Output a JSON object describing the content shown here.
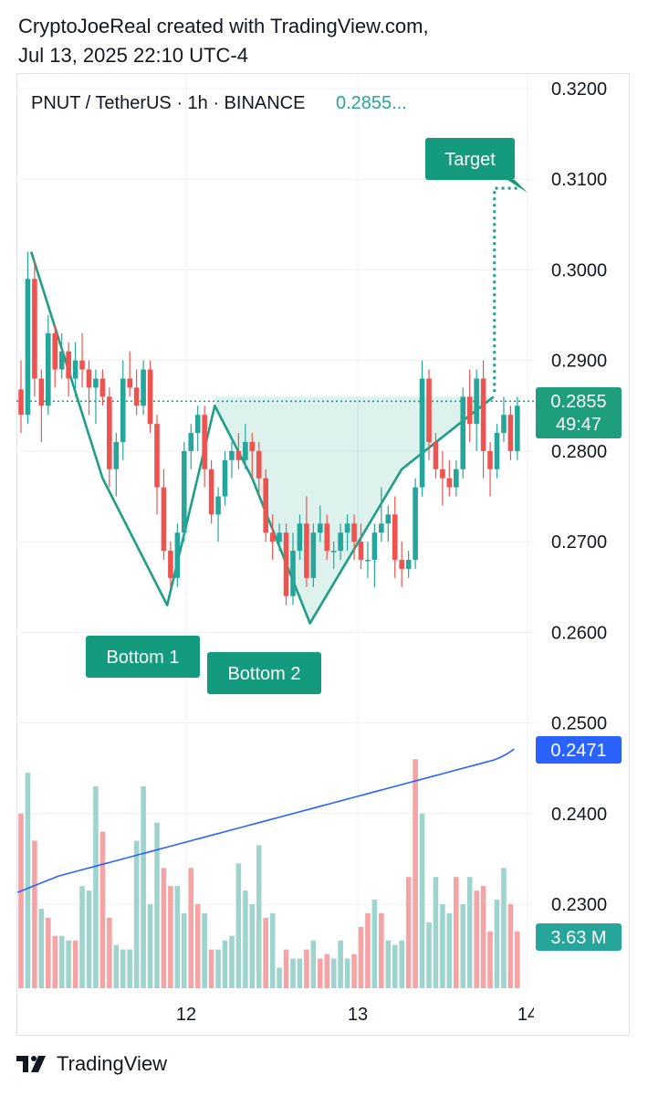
{
  "header": {
    "line1": "CryptoJoeReal created with TradingView.com,",
    "line2": "Jul 13, 2025 22:10 UTC-4"
  },
  "footer": {
    "brand": "TradingView"
  },
  "legend": {
    "symbol": "PNUT / TetherUS · 1h · BINANCE",
    "price": "0.2855..."
  },
  "colors": {
    "up": "#26a69a",
    "down": "#ef5350",
    "up_vol": "#9fd3cd",
    "down_vol": "#f4a4a4",
    "pattern": "#1e9e86",
    "label_bg": "#149a7c",
    "ma_line": "#2962ff",
    "grid": "#eef0f3"
  },
  "chart_data": {
    "type": "candlestick",
    "symbol": "PNUT / TetherUS",
    "interval": "1h",
    "exchange": "BINANCE",
    "price_axis": {
      "ticks": [
        "0.3200",
        "0.3100",
        "0.3000",
        "0.2900",
        "0.2800",
        "0.2700",
        "0.2600",
        "0.2500",
        "0.2400",
        "0.2300"
      ],
      "range": [
        0.2215,
        0.3215
      ]
    },
    "time_axis": {
      "labels": [
        "12",
        "13",
        "14"
      ]
    },
    "last_price": {
      "value": "0.2855",
      "countdown": "49:47"
    },
    "ma_badge": "0.2471",
    "volume_badge": "3.63 M",
    "candles": [
      [
        0.2868,
        0.29,
        0.282,
        0.284
      ],
      [
        0.284,
        0.302,
        0.283,
        0.299
      ],
      [
        0.299,
        0.301,
        0.286,
        0.288
      ],
      [
        0.288,
        0.289,
        0.281,
        0.285
      ],
      [
        0.285,
        0.295,
        0.284,
        0.293
      ],
      [
        0.293,
        0.294,
        0.287,
        0.289
      ],
      [
        0.289,
        0.293,
        0.288,
        0.291
      ],
      [
        0.291,
        0.292,
        0.286,
        0.288
      ],
      [
        0.288,
        0.292,
        0.286,
        0.29
      ],
      [
        0.29,
        0.293,
        0.287,
        0.289
      ],
      [
        0.289,
        0.29,
        0.284,
        0.287
      ],
      [
        0.287,
        0.289,
        0.283,
        0.288
      ],
      [
        0.288,
        0.289,
        0.285,
        0.286
      ],
      [
        0.286,
        0.287,
        0.276,
        0.278
      ],
      [
        0.278,
        0.282,
        0.275,
        0.281
      ],
      [
        0.281,
        0.29,
        0.279,
        0.288
      ],
      [
        0.288,
        0.291,
        0.286,
        0.287
      ],
      [
        0.287,
        0.289,
        0.284,
        0.285
      ],
      [
        0.285,
        0.29,
        0.284,
        0.289
      ],
      [
        0.289,
        0.29,
        0.282,
        0.283
      ],
      [
        0.283,
        0.284,
        0.273,
        0.276
      ],
      [
        0.276,
        0.278,
        0.268,
        0.269
      ],
      [
        0.269,
        0.27,
        0.265,
        0.266
      ],
      [
        0.266,
        0.272,
        0.265,
        0.271
      ],
      [
        0.271,
        0.281,
        0.27,
        0.28
      ],
      [
        0.28,
        0.283,
        0.278,
        0.282
      ],
      [
        0.282,
        0.285,
        0.28,
        0.284
      ],
      [
        0.284,
        0.285,
        0.276,
        0.278
      ],
      [
        0.278,
        0.279,
        0.272,
        0.273
      ],
      [
        0.273,
        0.276,
        0.27,
        0.275
      ],
      [
        0.275,
        0.28,
        0.274,
        0.279
      ],
      [
        0.279,
        0.281,
        0.277,
        0.28
      ],
      [
        0.28,
        0.282,
        0.278,
        0.279
      ],
      [
        0.279,
        0.283,
        0.278,
        0.281
      ],
      [
        0.281,
        0.282,
        0.277,
        0.28
      ],
      [
        0.28,
        0.281,
        0.275,
        0.277
      ],
      [
        0.277,
        0.278,
        0.27,
        0.271
      ],
      [
        0.271,
        0.273,
        0.268,
        0.27
      ],
      [
        0.27,
        0.272,
        0.269,
        0.271
      ],
      [
        0.271,
        0.272,
        0.263,
        0.264
      ],
      [
        0.264,
        0.271,
        0.263,
        0.269
      ],
      [
        0.269,
        0.273,
        0.268,
        0.272
      ],
      [
        0.272,
        0.275,
        0.265,
        0.266
      ],
      [
        0.266,
        0.272,
        0.265,
        0.271
      ],
      [
        0.271,
        0.274,
        0.27,
        0.272
      ],
      [
        0.272,
        0.273,
        0.268,
        0.269
      ],
      [
        0.269,
        0.27,
        0.267,
        0.269
      ],
      [
        0.269,
        0.272,
        0.268,
        0.271
      ],
      [
        0.271,
        0.273,
        0.269,
        0.272
      ],
      [
        0.272,
        0.273,
        0.268,
        0.27
      ],
      [
        0.27,
        0.272,
        0.267,
        0.268
      ],
      [
        0.268,
        0.27,
        0.266,
        0.268
      ],
      [
        0.268,
        0.272,
        0.265,
        0.271
      ],
      [
        0.271,
        0.276,
        0.27,
        0.272
      ],
      [
        0.272,
        0.274,
        0.27,
        0.273
      ],
      [
        0.273,
        0.275,
        0.266,
        0.268
      ],
      [
        0.268,
        0.27,
        0.265,
        0.267
      ],
      [
        0.267,
        0.269,
        0.266,
        0.268
      ],
      [
        0.268,
        0.277,
        0.267,
        0.276
      ],
      [
        0.276,
        0.29,
        0.275,
        0.288
      ],
      [
        0.288,
        0.289,
        0.279,
        0.281
      ],
      [
        0.281,
        0.282,
        0.277,
        0.278
      ],
      [
        0.278,
        0.28,
        0.274,
        0.277
      ],
      [
        0.277,
        0.279,
        0.275,
        0.276
      ],
      [
        0.276,
        0.279,
        0.275,
        0.278
      ],
      [
        0.278,
        0.287,
        0.277,
        0.286
      ],
      [
        0.286,
        0.289,
        0.281,
        0.283
      ],
      [
        0.283,
        0.289,
        0.28,
        0.288
      ],
      [
        0.288,
        0.29,
        0.277,
        0.28
      ],
      [
        0.28,
        0.281,
        0.275,
        0.278
      ],
      [
        0.278,
        0.283,
        0.277,
        0.282
      ],
      [
        0.282,
        0.286,
        0.281,
        0.284
      ],
      [
        0.284,
        0.285,
        0.279,
        0.28
      ],
      [
        0.28,
        0.286,
        0.279,
        0.285
      ]
    ],
    "volumes": [
      [
        0.24,
        1
      ],
      [
        0.2445,
        0
      ],
      [
        0.237,
        1
      ],
      [
        0.2295,
        0
      ],
      [
        0.2285,
        1
      ],
      [
        0.2265,
        1
      ],
      [
        0.2265,
        0
      ],
      [
        0.226,
        0
      ],
      [
        0.226,
        1
      ],
      [
        0.232,
        0
      ],
      [
        0.2315,
        0
      ],
      [
        0.243,
        0
      ],
      [
        0.238,
        1
      ],
      [
        0.2285,
        1
      ],
      [
        0.2255,
        0
      ],
      [
        0.225,
        0
      ],
      [
        0.225,
        0
      ],
      [
        0.237,
        0
      ],
      [
        0.243,
        0
      ],
      [
        0.23,
        0
      ],
      [
        0.239,
        0
      ],
      [
        0.234,
        1
      ],
      [
        0.232,
        1
      ],
      [
        0.232,
        0
      ],
      [
        0.229,
        0
      ],
      [
        0.234,
        1
      ],
      [
        0.23,
        1
      ],
      [
        0.229,
        0
      ],
      [
        0.225,
        1
      ],
      [
        0.225,
        0
      ],
      [
        0.226,
        0
      ],
      [
        0.2265,
        0
      ],
      [
        0.2345,
        0
      ],
      [
        0.2315,
        0
      ],
      [
        0.23,
        0
      ],
      [
        0.2365,
        0
      ],
      [
        0.2285,
        1
      ],
      [
        0.229,
        0
      ],
      [
        0.223,
        0
      ],
      [
        0.225,
        1
      ],
      [
        0.224,
        0
      ],
      [
        0.224,
        0
      ],
      [
        0.225,
        1
      ],
      [
        0.226,
        0
      ],
      [
        0.224,
        1
      ],
      [
        0.2245,
        1
      ],
      [
        0.224,
        0
      ],
      [
        0.226,
        0
      ],
      [
        0.224,
        0
      ],
      [
        0.2245,
        1
      ],
      [
        0.2275,
        1
      ],
      [
        0.229,
        1
      ],
      [
        0.2305,
        0
      ],
      [
        0.229,
        1
      ],
      [
        0.226,
        0
      ],
      [
        0.2255,
        0
      ],
      [
        0.226,
        0
      ],
      [
        0.233,
        1
      ],
      [
        0.246,
        1
      ],
      [
        0.24,
        0
      ],
      [
        0.228,
        0
      ],
      [
        0.233,
        0
      ],
      [
        0.23,
        0
      ],
      [
        0.229,
        0
      ],
      [
        0.233,
        1
      ],
      [
        0.23,
        0
      ],
      [
        0.233,
        0
      ],
      [
        0.2315,
        1
      ],
      [
        0.232,
        1
      ],
      [
        0.227,
        1
      ],
      [
        0.2305,
        0
      ],
      [
        0.234,
        0
      ],
      [
        0.23,
        1
      ],
      [
        0.227,
        1
      ]
    ],
    "ma_series": [
      0.2313,
      0.2316,
      0.2319,
      0.2322,
      0.2325,
      0.2328,
      0.2331,
      0.2333,
      0.2335,
      0.2337,
      0.2339,
      0.2341,
      0.2343,
      0.2345,
      0.2347,
      0.2349,
      0.2351,
      0.2353,
      0.2355,
      0.2357,
      0.2359,
      0.2361,
      0.2363,
      0.2365,
      0.2367,
      0.2369,
      0.2371,
      0.2373,
      0.2375,
      0.2377,
      0.2379,
      0.2381,
      0.2383,
      0.2385,
      0.2387,
      0.2389,
      0.2391,
      0.2393,
      0.2395,
      0.2397,
      0.2399,
      0.2401,
      0.2403,
      0.2405,
      0.2407,
      0.2409,
      0.2411,
      0.2413,
      0.2415,
      0.2417,
      0.2419,
      0.2421,
      0.2423,
      0.2425,
      0.2427,
      0.2429,
      0.2431,
      0.2433,
      0.2435,
      0.2437,
      0.2439,
      0.2441,
      0.2443,
      0.2445,
      0.2447,
      0.2449,
      0.2451,
      0.2453,
      0.2455,
      0.2457,
      0.2459,
      0.2462,
      0.2466,
      0.2471
    ],
    "pattern": {
      "name": "Double Bottom",
      "points": [
        {
          "i": 1.5,
          "price": 0.302
        },
        {
          "i": 12,
          "price": 0.277
        },
        {
          "i": 21.5,
          "price": 0.263
        },
        {
          "i": 28.5,
          "price": 0.285
        },
        {
          "i": 34,
          "price": 0.277
        },
        {
          "i": 42.5,
          "price": 0.261
        },
        {
          "i": 56,
          "price": 0.278
        },
        {
          "i": 69.5,
          "price": 0.286
        }
      ],
      "neckline": 0.2855,
      "target_price": 0.309,
      "labels": [
        "Bottom 1",
        "Bottom 2",
        "Target"
      ]
    }
  }
}
